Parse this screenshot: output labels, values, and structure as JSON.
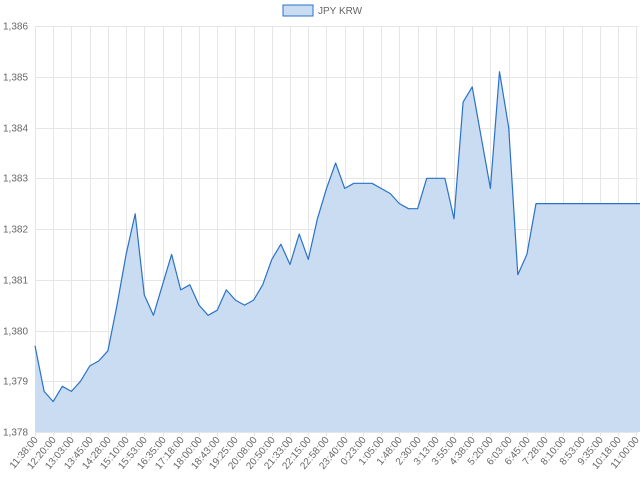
{
  "chart_data": {
    "type": "area",
    "legend": {
      "label": "JPY KRW",
      "position": "top-center",
      "fill": "#c9dcf2",
      "stroke": "#2a72c8"
    },
    "ylim": [
      1378,
      1386
    ],
    "yticks": [
      1378,
      1379,
      1380,
      1381,
      1382,
      1383,
      1384,
      1385,
      1386
    ],
    "ytick_labels": [
      "1,378",
      "1,379",
      "1,380",
      "1,381",
      "1,382",
      "1,383",
      "1,384",
      "1,385",
      "1,386"
    ],
    "xtick_labels": [
      "11:38:00",
      "12:20:00",
      "13:03:00",
      "13:45:00",
      "14:28:00",
      "15:10:00",
      "15:53:00",
      "16:35:00",
      "17:18:00",
      "18:00:00",
      "18:43:00",
      "19:25:00",
      "20:08:00",
      "20:50:00",
      "21:33:00",
      "22:15:00",
      "22:58:00",
      "23:40:00",
      "0:23:00",
      "1:05:00",
      "1:48:00",
      "2:30:00",
      "3:13:00",
      "3:55:00",
      "4:38:00",
      "5:20:00",
      "6:03:00",
      "6:45:00",
      "7:28:00",
      "8:10:00",
      "8:53:00",
      "9:35:00",
      "10:18:00",
      "11:00:00"
    ],
    "grid": true,
    "series": [
      {
        "name": "JPY KRW",
        "color": "#2a72c8",
        "fill": "#c9dcf2",
        "x": [
          0,
          0.5,
          1,
          1.5,
          2,
          2.5,
          3,
          3.5,
          4,
          4.5,
          5,
          5.5,
          6,
          6.5,
          7,
          7.5,
          8,
          8.5,
          9,
          9.5,
          10,
          10.5,
          11,
          11.5,
          12,
          12.5,
          13,
          13.5,
          14,
          14.5,
          15,
          15.5,
          16,
          16.5,
          17,
          17.5,
          18,
          18.5,
          19,
          19.5,
          20,
          20.5,
          21,
          21.5,
          22,
          22.5,
          23,
          23.5,
          24,
          24.5,
          25,
          25.5,
          26,
          26.5,
          27,
          27.5,
          28,
          28.5,
          29,
          29.5,
          30,
          30.5,
          31,
          31.5,
          32,
          32.5,
          33,
          33.3
        ],
        "values": [
          1379.7,
          1378.8,
          1378.6,
          1378.9,
          1378.8,
          1379.0,
          1379.3,
          1379.4,
          1379.6,
          1380.5,
          1381.5,
          1382.3,
          1380.7,
          1380.3,
          1380.9,
          1381.5,
          1380.8,
          1380.9,
          1380.5,
          1380.3,
          1380.4,
          1380.8,
          1380.6,
          1380.5,
          1380.6,
          1380.9,
          1381.4,
          1381.7,
          1381.3,
          1381.9,
          1381.4,
          1382.2,
          1382.8,
          1383.3,
          1382.8,
          1382.9,
          1382.9,
          1382.9,
          1382.8,
          1382.7,
          1382.5,
          1382.4,
          1382.4,
          1383.0,
          1383.0,
          1383.0,
          1382.2,
          1384.5,
          1384.8,
          1383.8,
          1382.8,
          1385.1,
          1384.0,
          1381.1,
          1381.5,
          1382.5,
          1382.5,
          1382.5,
          1382.5,
          1382.5,
          1382.5,
          1382.5,
          1382.5,
          1382.5,
          1382.5,
          1382.5,
          1382.5,
          1382.5
        ]
      }
    ]
  }
}
